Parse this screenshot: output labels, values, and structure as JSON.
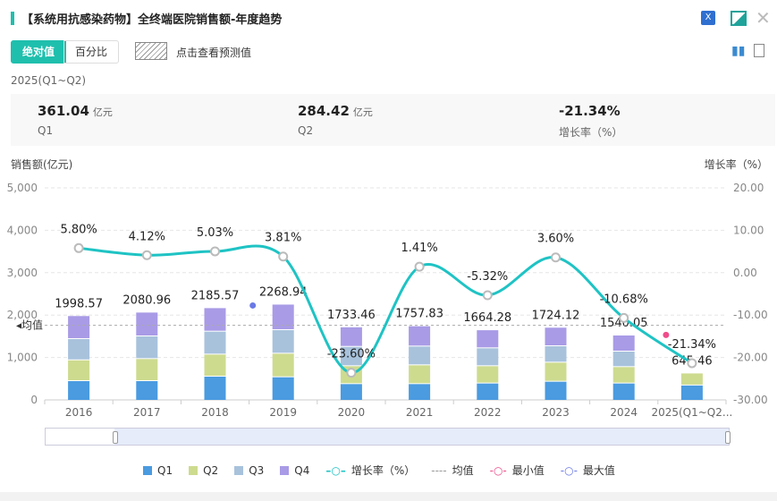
{
  "title": "【系统用抗感染药物】全终端医院销售额-年度趋势",
  "toggle": {
    "absolute": "绝对值",
    "percent": "百分比"
  },
  "forecast_label": "点击查看预测值",
  "period": "2025(Q1~Q2)",
  "kpis": [
    {
      "value": "361.04",
      "unit": "亿元",
      "label": "Q1"
    },
    {
      "value": "284.42",
      "unit": "亿元",
      "label": "Q2"
    },
    {
      "value": "-21.34%",
      "unit": "",
      "label": "增长率（%）"
    }
  ],
  "colors": {
    "Q1": "#4a9be0",
    "Q2": "#cddb8f",
    "Q3": "#a8c2dc",
    "Q4": "#a99be6",
    "line": "#1fc3c4",
    "min": "#ee4d8a",
    "max": "#6a7ae6"
  },
  "chart_data": {
    "type": "bar",
    "ylabel_left": "销售额(亿元)",
    "ylabel_right": "增长率（%）",
    "categories": [
      "2016",
      "2017",
      "2018",
      "2019",
      "2020",
      "2021",
      "2022",
      "2023",
      "2024",
      "2025(Q1~Q2..."
    ],
    "series": [
      {
        "name": "Q1",
        "values": [
          464,
          464,
          570,
          555,
          394,
          394,
          408,
          450,
          408,
          361.04
        ]
      },
      {
        "name": "Q2",
        "values": [
          491,
          521,
          520,
          556,
          422,
          443,
          408,
          450,
          387,
          284.42
        ]
      },
      {
        "name": "Q3",
        "values": [
          501,
          534,
          541,
          556,
          456,
          443,
          422,
          387,
          365,
          0
        ]
      },
      {
        "name": "Q4",
        "values": [
          542.57,
          561.96,
          554.57,
          601.94,
          461.46,
          477.83,
          426.28,
          437.12,
          380.05,
          0
        ]
      }
    ],
    "totals": [
      "1998.57",
      "2080.96",
      "2185.57",
      "2268.94",
      "1733.46",
      "1757.83",
      "1664.28",
      "1724.12",
      "1540.05",
      "645.46"
    ],
    "growth": {
      "name": "增长率（%）",
      "values": [
        5.8,
        4.12,
        5.03,
        3.81,
        -23.6,
        1.41,
        -5.32,
        3.6,
        -10.68,
        -21.34
      ],
      "labels": [
        "5.80%",
        "4.12%",
        "5.03%",
        "3.81%",
        "-23.60%",
        "1.41%",
        "-5.32%",
        "3.60%",
        "-10.68%",
        "-21.34%"
      ]
    },
    "average": 1759.92,
    "average_label": "均值",
    "ylim_left": [
      0,
      5000
    ],
    "yticks_left": [
      "0",
      "1,000",
      "2,000",
      "3,000",
      "4,000",
      "5,000"
    ],
    "ylim_right": [
      -30,
      20
    ],
    "yticks_right": [
      "-30.00",
      "-20.00",
      "-10.00",
      "0.00",
      "10.00",
      "20.00"
    ],
    "legend": [
      "Q1",
      "Q2",
      "Q3",
      "Q4",
      "增长率（%）",
      "均值",
      "最小值",
      "最大值"
    ]
  }
}
